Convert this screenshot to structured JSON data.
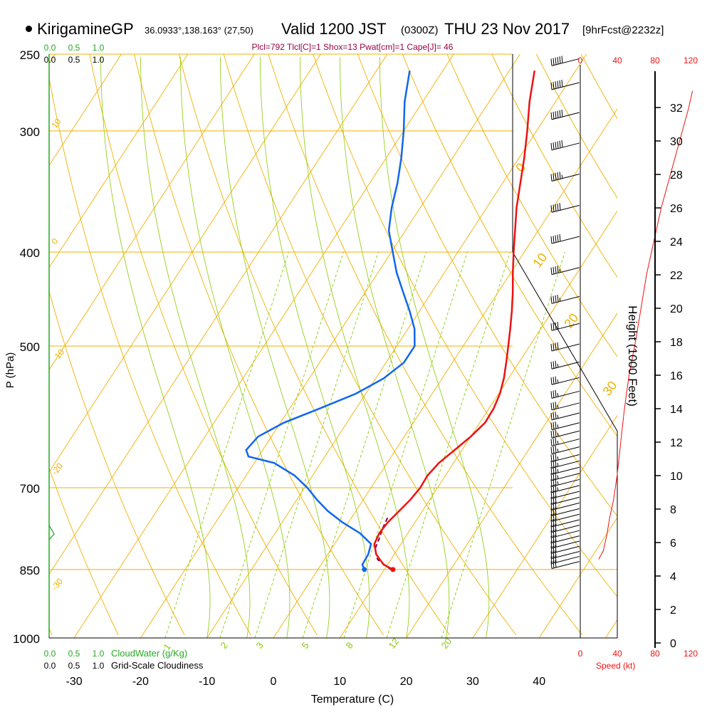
{
  "header": {
    "station": "KirigamineGP",
    "coords": "36.0933°,138.163° (27,50)",
    "valid": "Valid 1200 JST",
    "valid_utc": "(0300Z)",
    "valid_date": "THU 23 Nov 2017",
    "forecast": "[9hrFcst@2232z]",
    "indices": "Plcl=792 Tlcl[C]=1 Shox=13 Pwat[cm]=1 Cape[J]= 46"
  },
  "colors": {
    "temperature": "#ee1111",
    "dewpoint": "#1166ee",
    "parcel": "#880044",
    "isotherm": "#f0b000",
    "dry_adiabat": "#f0b000",
    "moist_adiabat": "#88cc00",
    "mixing_ratio": "#88cc00",
    "cloud": "#22aa22",
    "wind_speed": "#ee1111",
    "indices": "#990044"
  },
  "chart_data": {
    "type": "skew-t",
    "xlabel": "Temperature (C)",
    "ylabel": "P (hPa)",
    "y2label": "Height (1000 Feet)",
    "temp_ticks": [
      -30,
      -20,
      -10,
      0,
      10,
      20,
      30,
      40
    ],
    "pressure_ticks": [
      250,
      300,
      400,
      500,
      700,
      850,
      1000
    ],
    "pressure_labels": [
      "250",
      "300",
      "400",
      "500",
      "700",
      "850",
      "1000"
    ],
    "height_ticks": [
      0,
      2,
      4,
      6,
      8,
      10,
      12,
      14,
      16,
      18,
      20,
      22,
      24,
      26,
      28,
      30,
      32
    ],
    "height_labels": [
      "0",
      "2",
      "4",
      "6",
      "8",
      "10",
      "12",
      "14",
      "16",
      "18",
      "20",
      "22",
      "24",
      "26",
      "28",
      "30",
      "32"
    ],
    "isotherm_labels": [
      "10",
      "0",
      "-10",
      "-20",
      "-30",
      "0",
      "10",
      "20",
      "30"
    ],
    "mixing_ratio_labels": [
      "1",
      "2",
      "3",
      "5",
      "8",
      "12",
      "20"
    ],
    "cloud_scale_labels": [
      "0.0",
      "0.5",
      "1.0"
    ],
    "cloudwater_label": "CloudWater (g/Kg)",
    "cloudiness_label": "Grid-Scale Cloudiness",
    "speed_ticks": [
      "0",
      "40",
      "80",
      "120"
    ],
    "speed_label": "Speed (kt)",
    "temperature_profile": [
      {
        "p": 850,
        "t": 11.3
      },
      {
        "p": 840,
        "t": 9.4
      },
      {
        "p": 820,
        "t": 7.3
      },
      {
        "p": 800,
        "t": 6.0
      },
      {
        "p": 780,
        "t": 5.7
      },
      {
        "p": 760,
        "t": 5.9
      },
      {
        "p": 740,
        "t": 6.5
      },
      {
        "p": 720,
        "t": 7.1
      },
      {
        "p": 700,
        "t": 7.4
      },
      {
        "p": 680,
        "t": 7.3
      },
      {
        "p": 660,
        "t": 7.8
      },
      {
        "p": 640,
        "t": 8.9
      },
      {
        "p": 620,
        "t": 10.0
      },
      {
        "p": 600,
        "t": 10.8
      },
      {
        "p": 580,
        "t": 10.7
      },
      {
        "p": 560,
        "t": 10.2
      },
      {
        "p": 540,
        "t": 9.3
      },
      {
        "p": 520,
        "t": 8.1
      },
      {
        "p": 500,
        "t": 6.8
      },
      {
        "p": 480,
        "t": 5.4
      },
      {
        "p": 460,
        "t": 3.9
      },
      {
        "p": 440,
        "t": 2.2
      },
      {
        "p": 420,
        "t": 0.3
      },
      {
        "p": 400,
        "t": -1.6
      },
      {
        "p": 380,
        "t": -3.5
      },
      {
        "p": 360,
        "t": -5.5
      },
      {
        "p": 340,
        "t": -7.3
      },
      {
        "p": 320,
        "t": -9.2
      },
      {
        "p": 300,
        "t": -11.4
      },
      {
        "p": 280,
        "t": -13.9
      },
      {
        "p": 260,
        "t": -16.2
      }
    ],
    "dewpoint_profile": [
      {
        "p": 850,
        "td": 7.0
      },
      {
        "p": 840,
        "td": 6.2
      },
      {
        "p": 820,
        "td": 6.1
      },
      {
        "p": 800,
        "td": 5.5
      },
      {
        "p": 780,
        "td": 2.8
      },
      {
        "p": 760,
        "td": -0.9
      },
      {
        "p": 740,
        "td": -4.2
      },
      {
        "p": 720,
        "td": -7.0
      },
      {
        "p": 700,
        "td": -9.6
      },
      {
        "p": 680,
        "td": -12.7
      },
      {
        "p": 660,
        "td": -17.0
      },
      {
        "p": 650,
        "td": -21.5
      },
      {
        "p": 640,
        "td": -22.5
      },
      {
        "p": 620,
        "td": -22.0
      },
      {
        "p": 600,
        "td": -19.5
      },
      {
        "p": 580,
        "td": -15.5
      },
      {
        "p": 560,
        "td": -11.5
      },
      {
        "p": 540,
        "td": -8.8
      },
      {
        "p": 520,
        "td": -7.3
      },
      {
        "p": 500,
        "td": -7.3
      },
      {
        "p": 480,
        "td": -9.0
      },
      {
        "p": 460,
        "td": -11.5
      },
      {
        "p": 440,
        "td": -14.3
      },
      {
        "p": 420,
        "td": -17.2
      },
      {
        "p": 400,
        "td": -19.8
      },
      {
        "p": 380,
        "td": -22.5
      },
      {
        "p": 360,
        "td": -24.3
      },
      {
        "p": 340,
        "td": -25.8
      },
      {
        "p": 320,
        "td": -27.7
      },
      {
        "p": 300,
        "td": -30.0
      },
      {
        "p": 280,
        "td": -32.7
      },
      {
        "p": 260,
        "td": -35.0
      }
    ],
    "parcel_profile": [
      {
        "p": 850,
        "t": 11.0
      },
      {
        "p": 830,
        "t": 8.0
      },
      {
        "p": 810,
        "t": 6.6
      },
      {
        "p": 790,
        "t": 6.2
      },
      {
        "p": 770,
        "t": 5.7
      },
      {
        "p": 750,
        "t": 5.4
      }
    ],
    "surface": {
      "p": 850,
      "t": 11.3,
      "td": 7.0
    },
    "wind_speed_profile": [
      {
        "h": 5.0,
        "spd": 20
      },
      {
        "h": 5.5,
        "spd": 25
      },
      {
        "h": 6.5,
        "spd": 29
      },
      {
        "h": 7.5,
        "spd": 32
      },
      {
        "h": 8.5,
        "spd": 36
      },
      {
        "h": 10.0,
        "spd": 40
      },
      {
        "h": 11.0,
        "spd": 42
      },
      {
        "h": 12.5,
        "spd": 45
      },
      {
        "h": 14.0,
        "spd": 48
      },
      {
        "h": 16.0,
        "spd": 53
      },
      {
        "h": 18.0,
        "spd": 60
      },
      {
        "h": 20.0,
        "spd": 66
      },
      {
        "h": 22.0,
        "spd": 72
      },
      {
        "h": 24.0,
        "spd": 80
      },
      {
        "h": 26.0,
        "spd": 88
      },
      {
        "h": 28.0,
        "spd": 98
      },
      {
        "h": 30.0,
        "spd": 108
      },
      {
        "h": 32.0,
        "spd": 118
      },
      {
        "h": 33.0,
        "spd": 122
      }
    ],
    "wind_barbs": [
      {
        "p": 848,
        "spd": 30
      },
      {
        "p": 838,
        "spd": 30
      },
      {
        "p": 828,
        "spd": 30
      },
      {
        "p": 818,
        "spd": 30
      },
      {
        "p": 808,
        "spd": 30
      },
      {
        "p": 798,
        "spd": 30
      },
      {
        "p": 788,
        "spd": 30
      },
      {
        "p": 778,
        "spd": 30
      },
      {
        "p": 768,
        "spd": 30
      },
      {
        "p": 758,
        "spd": 30
      },
      {
        "p": 748,
        "spd": 30
      },
      {
        "p": 738,
        "spd": 30
      },
      {
        "p": 728,
        "spd": 30
      },
      {
        "p": 718,
        "spd": 30
      },
      {
        "p": 708,
        "spd": 35
      },
      {
        "p": 698,
        "spd": 35
      },
      {
        "p": 688,
        "spd": 35
      },
      {
        "p": 678,
        "spd": 35
      },
      {
        "p": 668,
        "spd": 35
      },
      {
        "p": 658,
        "spd": 35
      },
      {
        "p": 646,
        "spd": 35
      },
      {
        "p": 634,
        "spd": 35
      },
      {
        "p": 622,
        "spd": 35
      },
      {
        "p": 610,
        "spd": 35
      },
      {
        "p": 596,
        "spd": 35
      },
      {
        "p": 582,
        "spd": 35
      },
      {
        "p": 566,
        "spd": 35
      },
      {
        "p": 548,
        "spd": 35
      },
      {
        "p": 528,
        "spd": 35
      },
      {
        "p": 506,
        "spd": 40
      },
      {
        "p": 482,
        "spd": 40
      },
      {
        "p": 452,
        "spd": 45
      },
      {
        "p": 422,
        "spd": 45
      },
      {
        "p": 392,
        "spd": 50
      },
      {
        "p": 364,
        "spd": 50
      },
      {
        "p": 338,
        "spd": 55
      },
      {
        "p": 314,
        "spd": 60
      },
      {
        "p": 292,
        "spd": 60
      },
      {
        "p": 272,
        "spd": 60
      },
      {
        "p": 257,
        "spd": 60
      }
    ]
  }
}
